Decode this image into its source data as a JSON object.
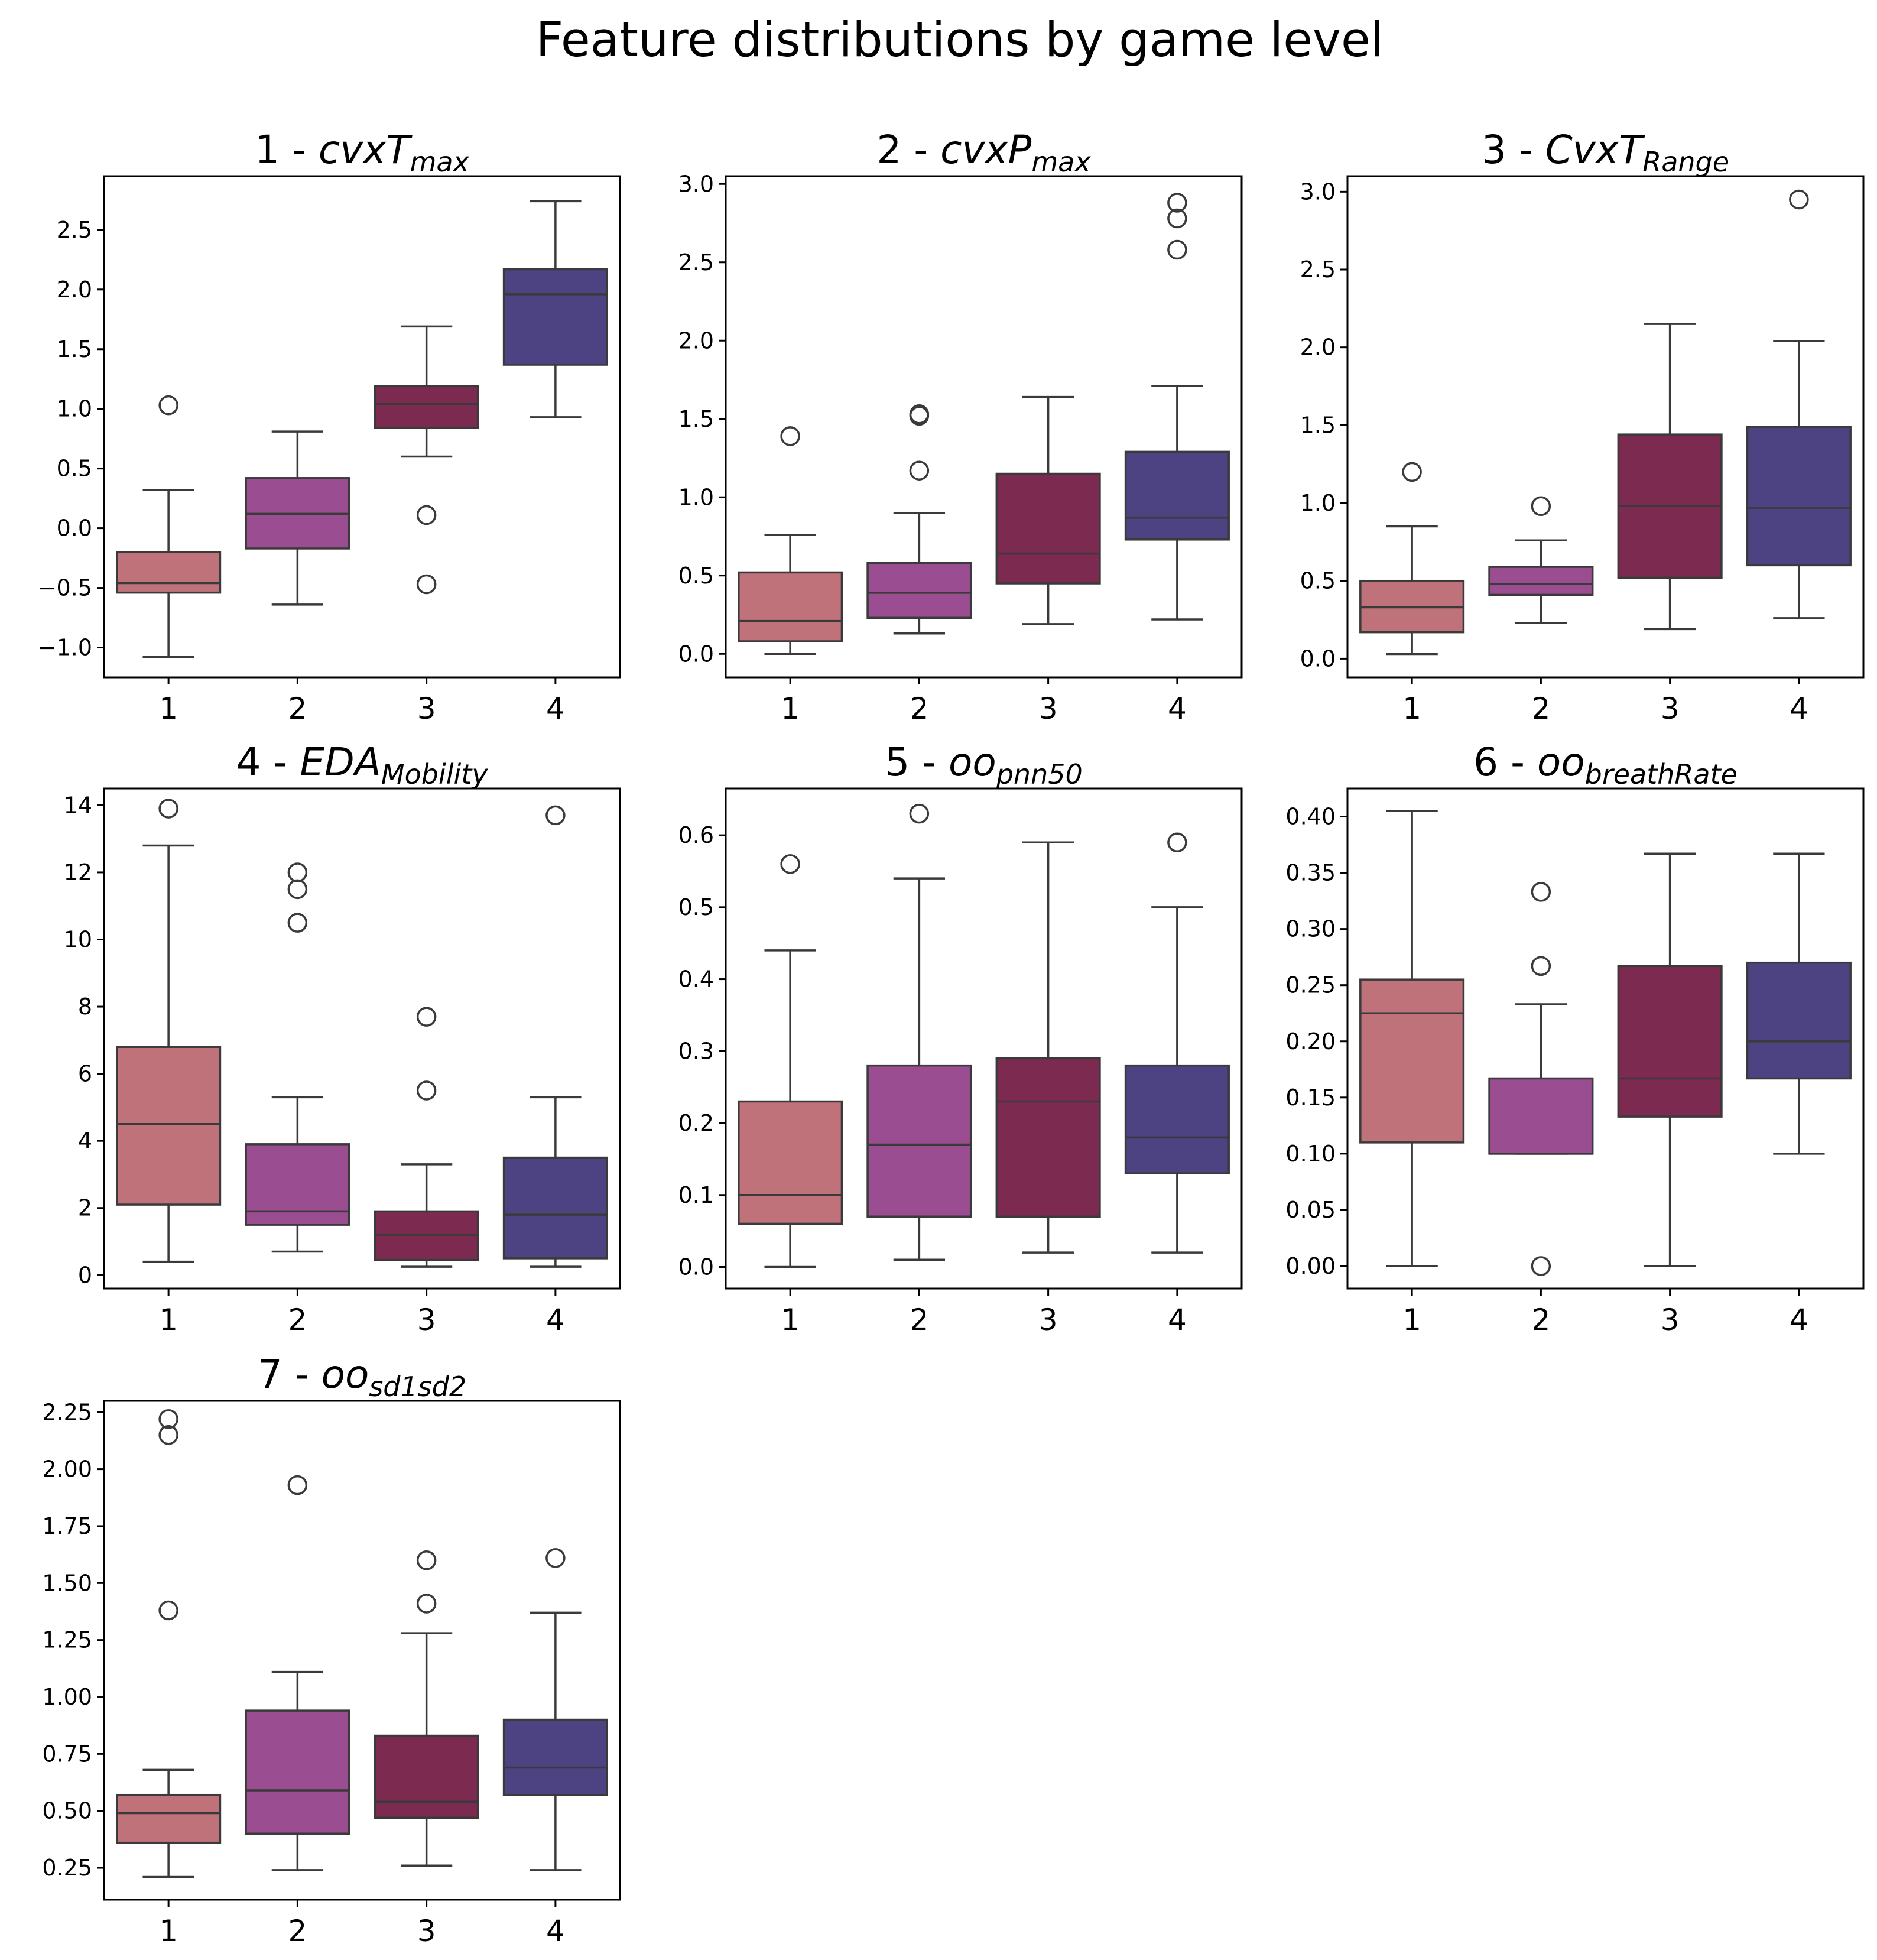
{
  "chart_data": {
    "type": "box",
    "suptitle": "Feature distributions by game level",
    "levels": [
      "1",
      "2",
      "3",
      "4"
    ],
    "colors": [
      "#c0727a",
      "#9b4d92",
      "#7c2a50",
      "#4d4282"
    ],
    "subplots": [
      {
        "title_prefix": "1 - ",
        "title_base": "cvxT",
        "title_sub": "max",
        "ylim": [
          -1.25,
          2.95
        ],
        "yticks": [
          -1.0,
          -0.5,
          0.0,
          0.5,
          1.0,
          1.5,
          2.0,
          2.5
        ],
        "ytick_labels": [
          "−1.0",
          "−0.5",
          "0.0",
          "0.5",
          "1.0",
          "1.5",
          "2.0",
          "2.5"
        ],
        "boxes": [
          {
            "level": "1",
            "whislo": -1.08,
            "q1": -0.54,
            "med": -0.46,
            "q3": -0.2,
            "whishi": 0.32,
            "fliers": [
              1.03
            ]
          },
          {
            "level": "2",
            "whislo": -0.64,
            "q1": -0.17,
            "med": 0.12,
            "q3": 0.42,
            "whishi": 0.81,
            "fliers": []
          },
          {
            "level": "3",
            "whislo": 0.6,
            "q1": 0.84,
            "med": 1.04,
            "q3": 1.19,
            "whishi": 1.69,
            "fliers": [
              0.11,
              -0.47
            ]
          },
          {
            "level": "4",
            "whislo": 0.93,
            "q1": 1.37,
            "med": 1.96,
            "q3": 2.17,
            "whishi": 2.74,
            "fliers": []
          }
        ]
      },
      {
        "title_prefix": "2 - ",
        "title_base": "cvxP",
        "title_sub": "max",
        "ylim": [
          -0.15,
          3.05
        ],
        "yticks": [
          0.0,
          0.5,
          1.0,
          1.5,
          2.0,
          2.5,
          3.0
        ],
        "ytick_labels": [
          "0.0",
          "0.5",
          "1.0",
          "1.5",
          "2.0",
          "2.5",
          "3.0"
        ],
        "boxes": [
          {
            "level": "1",
            "whislo": 0.0,
            "q1": 0.08,
            "med": 0.21,
            "q3": 0.52,
            "whishi": 0.76,
            "fliers": [
              1.39
            ]
          },
          {
            "level": "2",
            "whislo": 0.13,
            "q1": 0.23,
            "med": 0.39,
            "q3": 0.58,
            "whishi": 0.9,
            "fliers": [
              1.17,
              1.52,
              1.53
            ]
          },
          {
            "level": "3",
            "whislo": 0.19,
            "q1": 0.45,
            "med": 0.64,
            "q3": 1.15,
            "whishi": 1.64,
            "fliers": []
          },
          {
            "level": "4",
            "whislo": 0.22,
            "q1": 0.73,
            "med": 0.87,
            "q3": 1.29,
            "whishi": 1.71,
            "fliers": [
              2.58,
              2.78,
              2.88
            ]
          }
        ]
      },
      {
        "title_prefix": "3 - ",
        "title_base": "CvxT",
        "title_sub": "Range",
        "ylim": [
          -0.12,
          3.1
        ],
        "yticks": [
          0.0,
          0.5,
          1.0,
          1.5,
          2.0,
          2.5,
          3.0
        ],
        "ytick_labels": [
          "0.0",
          "0.5",
          "1.0",
          "1.5",
          "2.0",
          "2.5",
          "3.0"
        ],
        "boxes": [
          {
            "level": "1",
            "whislo": 0.03,
            "q1": 0.17,
            "med": 0.33,
            "q3": 0.5,
            "whishi": 0.85,
            "fliers": [
              1.2
            ]
          },
          {
            "level": "2",
            "whislo": 0.23,
            "q1": 0.41,
            "med": 0.48,
            "q3": 0.59,
            "whishi": 0.76,
            "fliers": [
              0.98
            ]
          },
          {
            "level": "3",
            "whislo": 0.19,
            "q1": 0.52,
            "med": 0.98,
            "q3": 1.44,
            "whishi": 2.15,
            "fliers": []
          },
          {
            "level": "4",
            "whislo": 0.26,
            "q1": 0.6,
            "med": 0.97,
            "q3": 1.49,
            "whishi": 2.04,
            "fliers": [
              2.95
            ]
          }
        ]
      },
      {
        "title_prefix": "4 - ",
        "title_base": "EDA",
        "title_sub": "Mobility",
        "ylim": [
          -0.4,
          14.5
        ],
        "yticks": [
          0,
          2,
          4,
          6,
          8,
          10,
          12,
          14
        ],
        "ytick_labels": [
          "0",
          "2",
          "4",
          "6",
          "8",
          "10",
          "12",
          "14"
        ],
        "boxes": [
          {
            "level": "1",
            "whislo": 0.4,
            "q1": 2.1,
            "med": 4.5,
            "q3": 6.8,
            "whishi": 12.8,
            "fliers": [
              13.9
            ]
          },
          {
            "level": "2",
            "whislo": 0.7,
            "q1": 1.5,
            "med": 1.9,
            "q3": 3.9,
            "whishi": 5.3,
            "fliers": [
              10.5,
              11.5,
              12.0
            ]
          },
          {
            "level": "3",
            "whislo": 0.25,
            "q1": 0.45,
            "med": 1.2,
            "q3": 1.9,
            "whishi": 3.3,
            "fliers": [
              5.5,
              7.7
            ]
          },
          {
            "level": "4",
            "whislo": 0.25,
            "q1": 0.5,
            "med": 1.8,
            "q3": 3.5,
            "whishi": 5.3,
            "fliers": [
              13.7
            ]
          }
        ]
      },
      {
        "title_prefix": "5 - ",
        "title_base": "oo",
        "title_sub": "pnn50",
        "ylim": [
          -0.03,
          0.665
        ],
        "yticks": [
          0.0,
          0.1,
          0.2,
          0.3,
          0.4,
          0.5,
          0.6
        ],
        "ytick_labels": [
          "0.0",
          "0.1",
          "0.2",
          "0.3",
          "0.4",
          "0.5",
          "0.6"
        ],
        "boxes": [
          {
            "level": "1",
            "whislo": 0.0,
            "q1": 0.06,
            "med": 0.1,
            "q3": 0.23,
            "whishi": 0.44,
            "fliers": [
              0.56
            ]
          },
          {
            "level": "2",
            "whislo": 0.01,
            "q1": 0.07,
            "med": 0.17,
            "q3": 0.28,
            "whishi": 0.54,
            "fliers": [
              0.63
            ]
          },
          {
            "level": "3",
            "whislo": 0.02,
            "q1": 0.07,
            "med": 0.23,
            "q3": 0.29,
            "whishi": 0.59,
            "fliers": []
          },
          {
            "level": "4",
            "whislo": 0.02,
            "q1": 0.13,
            "med": 0.18,
            "q3": 0.28,
            "whishi": 0.5,
            "fliers": [
              0.59
            ]
          }
        ]
      },
      {
        "title_prefix": "6 - ",
        "title_base": "oo",
        "title_sub": "breathRate",
        "ylim": [
          -0.02,
          0.425
        ],
        "yticks": [
          0.0,
          0.05,
          0.1,
          0.15,
          0.2,
          0.25,
          0.3,
          0.35,
          0.4
        ],
        "ytick_labels": [
          "0.00",
          "0.05",
          "0.10",
          "0.15",
          "0.20",
          "0.25",
          "0.30",
          "0.35",
          "0.40"
        ],
        "boxes": [
          {
            "level": "1",
            "whislo": 0.0,
            "q1": 0.11,
            "med": 0.225,
            "q3": 0.255,
            "whishi": 0.405,
            "fliers": []
          },
          {
            "level": "2",
            "whislo": 0.1,
            "q1": 0.1,
            "med": 0.1,
            "q3": 0.167,
            "whishi": 0.233,
            "fliers": [
              0.0,
              0.267,
              0.333
            ]
          },
          {
            "level": "3",
            "whislo": 0.0,
            "q1": 0.133,
            "med": 0.167,
            "q3": 0.267,
            "whishi": 0.367,
            "fliers": []
          },
          {
            "level": "4",
            "whislo": 0.1,
            "q1": 0.167,
            "med": 0.2,
            "q3": 0.27,
            "whishi": 0.367,
            "fliers": []
          }
        ]
      },
      {
        "title_prefix": "7 - ",
        "title_base": "oo",
        "title_sub": "sd1sd2",
        "ylim": [
          0.11,
          2.3
        ],
        "yticks": [
          0.25,
          0.5,
          0.75,
          1.0,
          1.25,
          1.5,
          1.75,
          2.0,
          2.25
        ],
        "ytick_labels": [
          "0.25",
          "0.50",
          "0.75",
          "1.00",
          "1.25",
          "1.50",
          "1.75",
          "2.00",
          "2.25"
        ],
        "boxes": [
          {
            "level": "1",
            "whislo": 0.21,
            "q1": 0.36,
            "med": 0.49,
            "q3": 0.57,
            "whishi": 0.68,
            "fliers": [
              1.38,
              2.15,
              2.22
            ]
          },
          {
            "level": "2",
            "whislo": 0.24,
            "q1": 0.4,
            "med": 0.59,
            "q3": 0.94,
            "whishi": 1.11,
            "fliers": [
              1.93
            ]
          },
          {
            "level": "3",
            "whislo": 0.26,
            "q1": 0.47,
            "med": 0.54,
            "q3": 0.83,
            "whishi": 1.28,
            "fliers": [
              1.41,
              1.6
            ]
          },
          {
            "level": "4",
            "whislo": 0.24,
            "q1": 0.57,
            "med": 0.69,
            "q3": 0.9,
            "whishi": 1.37,
            "fliers": [
              1.61
            ]
          }
        ]
      }
    ]
  }
}
